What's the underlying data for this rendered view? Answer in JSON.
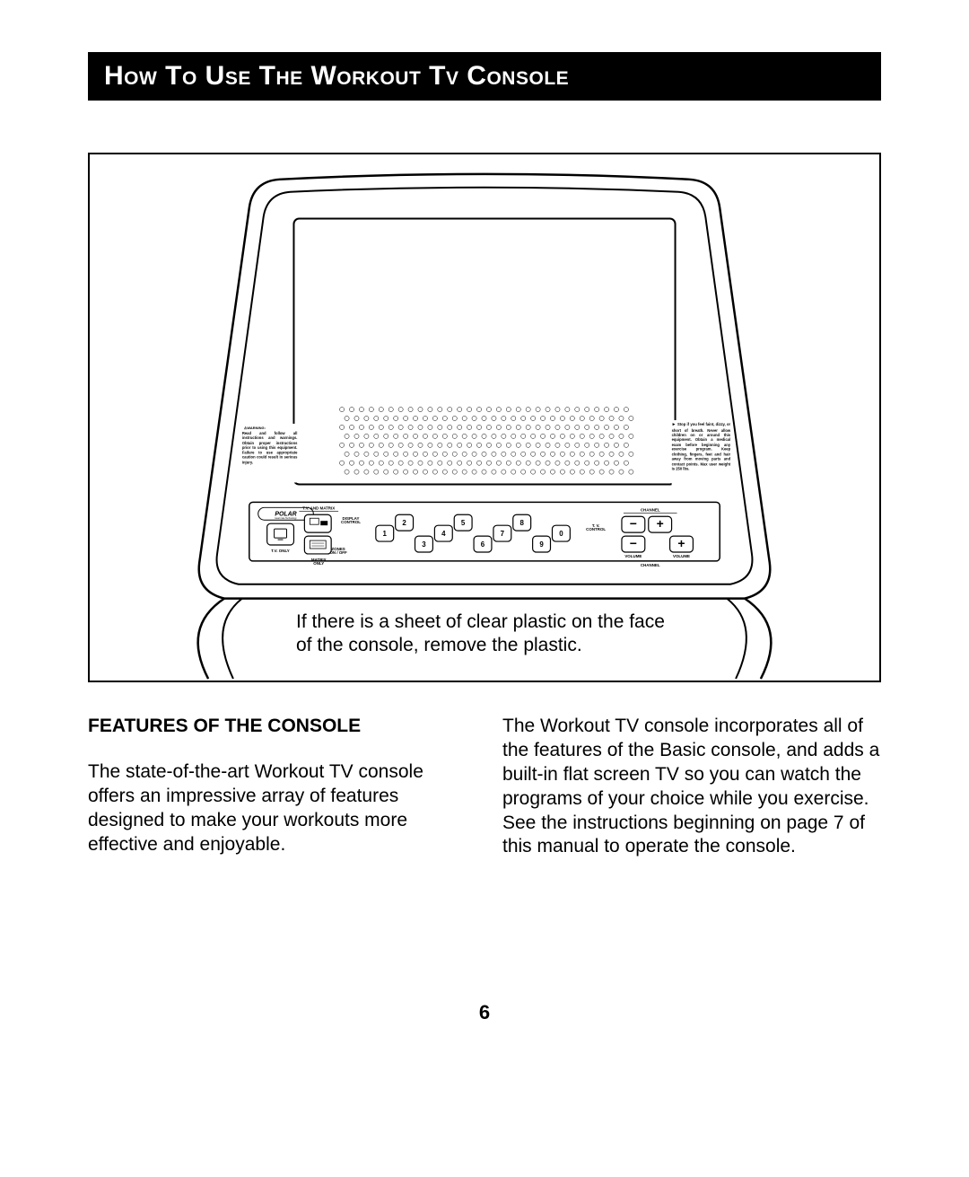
{
  "page": {
    "title": "How To Use The Workout Tv Console",
    "page_number": "6"
  },
  "figure": {
    "caption": "If there is a sheet of clear plastic on the face of the console, remove the plastic.",
    "warning_heading": "WARNING:",
    "warning_left": "Read and follow all instructions and warnings. Obtain proper instructions prior to using this equipment. Failure to use appropriate caution could result in serious injury.",
    "warning_right": "Stop if you feel faint, dizzy, or short of breath. Never allow children on or around this equipment. Obtain a medical exam before beginning any exercise program. Keep clothing, fingers, feet and hair away from moving parts and contact points. Max user weight is 250 lbs.",
    "brand": "POLAR",
    "brand_sub": "Heart rate Technology",
    "labels": {
      "tv_and_matrix": "T.V. AND MATRIX",
      "tv_only": "T.V. ONLY",
      "matrix_only": "MATRIX ONLY",
      "display_control": "DISPLAY CONTROL",
      "zones_onoff": "ZONES ON / OFF",
      "tv_control": "T. V. CONTROL",
      "channel_top": "CHANNEL",
      "channel_bottom": "CHANNEL",
      "volume_l": "VOLUME",
      "volume_r": "VOLUME"
    },
    "keypad": [
      "1",
      "2",
      "3",
      "4",
      "5",
      "6",
      "7",
      "8",
      "9",
      "0"
    ],
    "outline_color": "#000000",
    "fill_color": "#ffffff",
    "grid_hole_color": "#888888"
  },
  "body": {
    "subheading": "FEATURES OF THE CONSOLE",
    "col1_para": "The state-of-the-art Workout TV console offers an impressive array of features designed to make your workouts more effective and enjoyable.",
    "col2_para": "The Workout TV console incorporates all of the features of the Basic console, and adds a built-in flat screen TV so you can watch the programs of your choice while you exercise. See the instructions beginning on page 7 of this manual to operate the console."
  }
}
